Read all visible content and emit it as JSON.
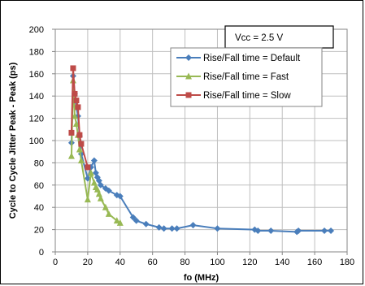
{
  "chart_data": {
    "type": "line",
    "title": "",
    "xlabel": "fo (MHz)",
    "ylabel": "Cycle to Cycle Jitter Peak - Peak (ps)",
    "xlim": [
      0,
      180
    ],
    "ylim": [
      0,
      200
    ],
    "xticks": [
      0,
      20,
      40,
      60,
      80,
      100,
      120,
      140,
      160,
      180
    ],
    "yticks": [
      0,
      20,
      40,
      60,
      80,
      100,
      120,
      140,
      160,
      180,
      200
    ],
    "grid": true,
    "legend_position": "top-right",
    "annotation": "Vcc = 2.5 V",
    "series": [
      {
        "name": "Rise/Fall time = Default",
        "color": "#4a7ebb",
        "marker": "diamond",
        "x": [
          10,
          11,
          12,
          13,
          14,
          15,
          16,
          20,
          22,
          24,
          25,
          26,
          27,
          28,
          31,
          33,
          38,
          40,
          48,
          50,
          56,
          64,
          67,
          72,
          75,
          85,
          100,
          123,
          125,
          133,
          149,
          150,
          166,
          170
        ],
        "y": [
          98,
          158,
          142,
          130,
          122,
          104,
          88,
          66,
          76,
          82,
          71,
          67,
          64,
          60,
          57,
          55,
          51,
          50,
          31,
          28,
          25,
          22,
          21,
          21,
          21,
          24,
          21,
          20,
          19,
          19,
          18,
          19,
          19,
          19
        ]
      },
      {
        "name": "Rise/Fall time = Fast",
        "color": "#98b954",
        "marker": "triangle",
        "x": [
          10,
          11,
          12,
          13,
          14,
          15,
          16,
          20,
          22,
          24,
          25,
          26,
          27,
          28,
          31,
          33,
          38,
          40
        ],
        "y": [
          86,
          154,
          122,
          115,
          105,
          92,
          82,
          47,
          71,
          62,
          58,
          56,
          52,
          48,
          40,
          34,
          28,
          26
        ]
      },
      {
        "name": "Rise/Fall time = Slow",
        "color": "#be4b48",
        "marker": "square",
        "x": [
          10,
          11,
          12,
          13,
          14,
          15,
          16,
          20
        ],
        "y": [
          107,
          165,
          142,
          136,
          130,
          105,
          97,
          76
        ]
      }
    ]
  }
}
